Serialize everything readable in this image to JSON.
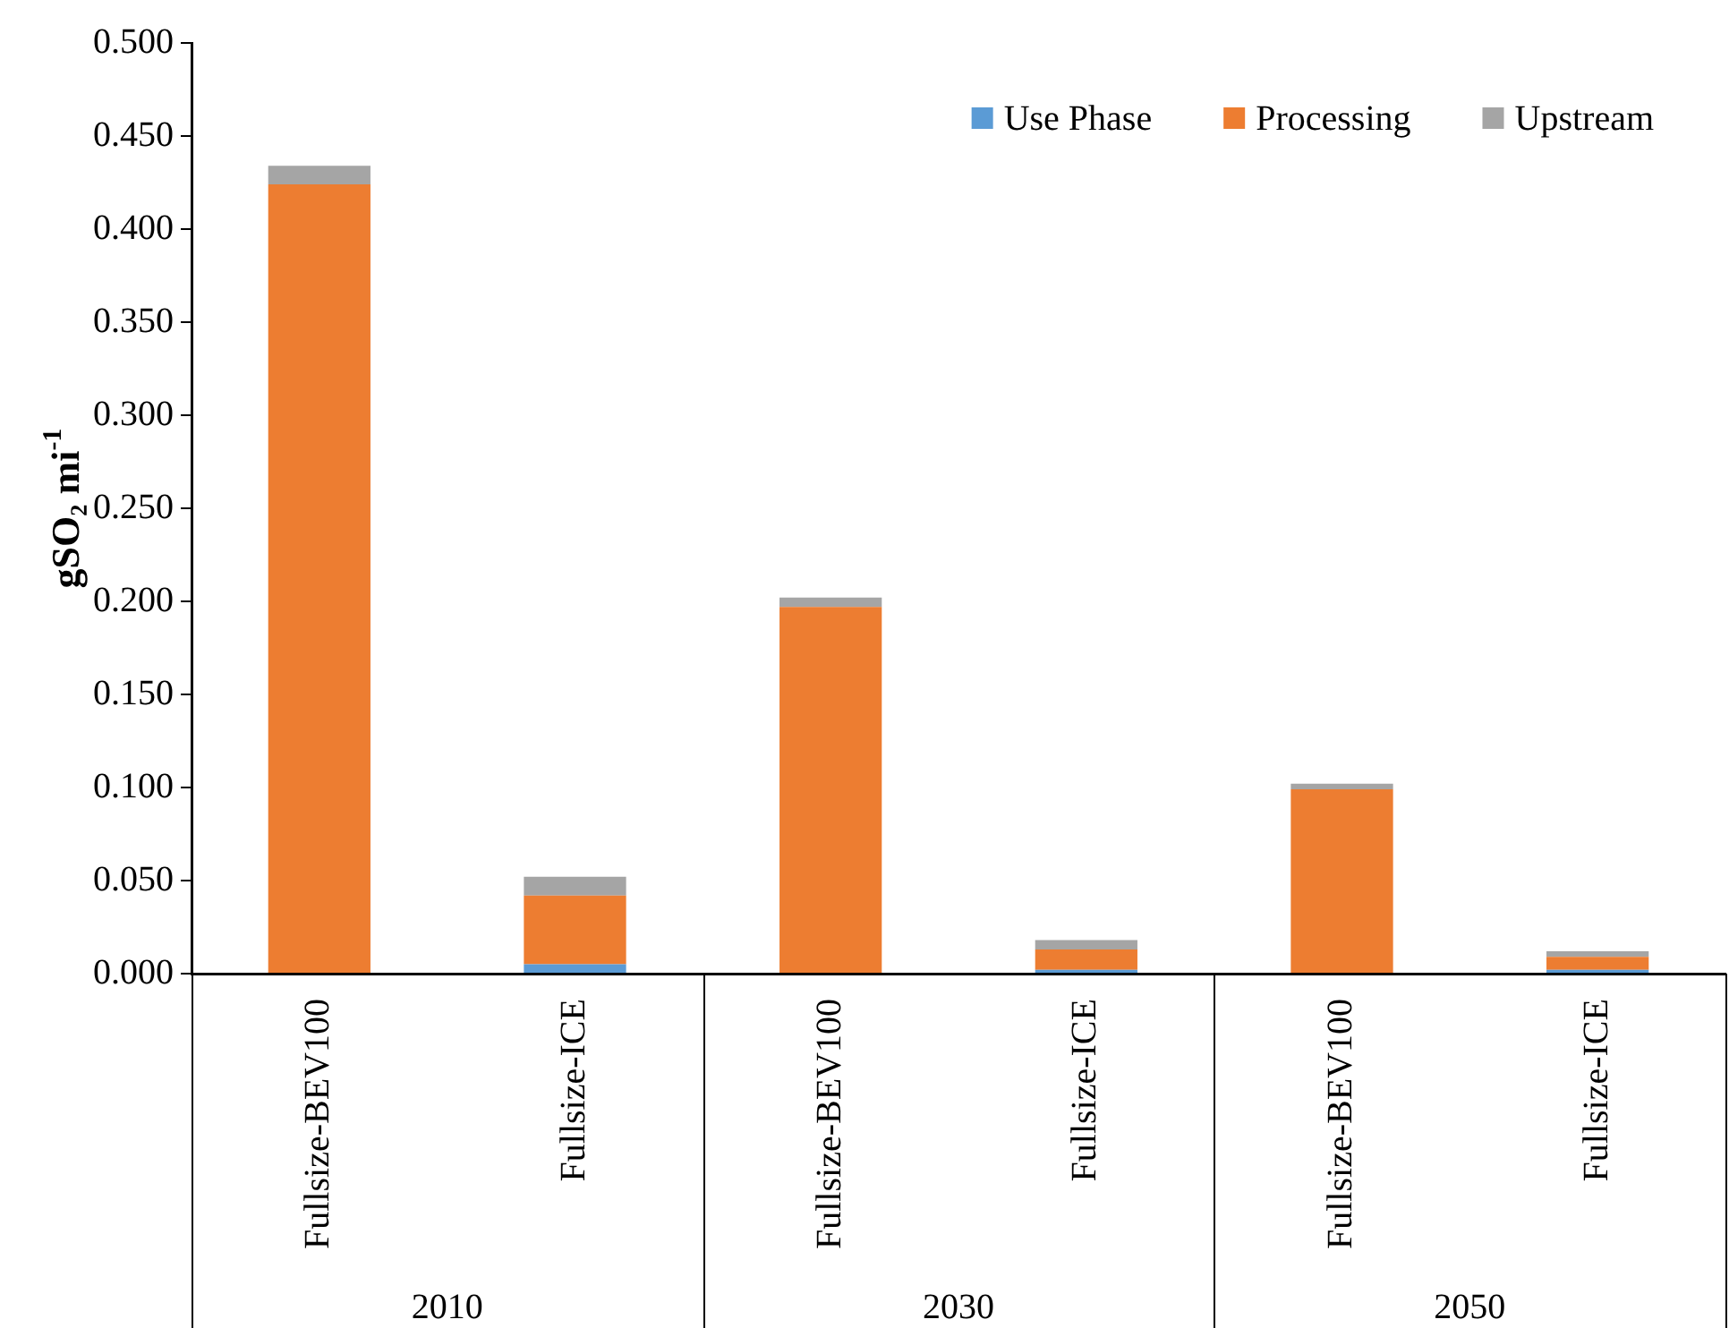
{
  "chart_data": {
    "type": "bar",
    "stacked": true,
    "categories": [
      "Fullsize-BEV100",
      "Fullsize-ICE",
      "Fullsize-BEV100",
      "Fullsize-ICE",
      "Fullsize-BEV100",
      "Fullsize-ICE"
    ],
    "series": [
      {
        "name": "Use Phase",
        "color": "#5b9bd5",
        "values": [
          0,
          0.005,
          0,
          0.002,
          0,
          0.002
        ]
      },
      {
        "name": "Processing",
        "color": "#ed7d31",
        "values": [
          0.424,
          0.037,
          0.197,
          0.011,
          0.099,
          0.007
        ]
      },
      {
        "name": "Upstream",
        "color": "#a5a5a5",
        "values": [
          0.01,
          0.01,
          0.005,
          0.005,
          0.003,
          0.003
        ]
      }
    ],
    "ylabel": "gSO₂ mi$^{-1}$",
    "ylim": [
      0,
      0.5
    ],
    "yticks": [
      {
        "value": 0,
        "label": "0.000"
      },
      {
        "value": 0.05,
        "label": "0.050"
      },
      {
        "value": 0.1,
        "label": "0.100"
      },
      {
        "value": 0.15,
        "label": "0.150"
      },
      {
        "value": 0.2,
        "label": "0.200"
      },
      {
        "value": 0.25,
        "label": "0.250"
      },
      {
        "value": 0.3,
        "label": "0.300"
      },
      {
        "value": 0.35,
        "label": "0.350"
      },
      {
        "value": 0.4,
        "label": "0.400"
      },
      {
        "value": 0.45,
        "label": "0.450"
      },
      {
        "value": 0.5,
        "label": "0.500"
      }
    ],
    "annotations": [
      "2010",
      "2030",
      "2050"
    ],
    "grid": false,
    "legend": "top right"
  }
}
